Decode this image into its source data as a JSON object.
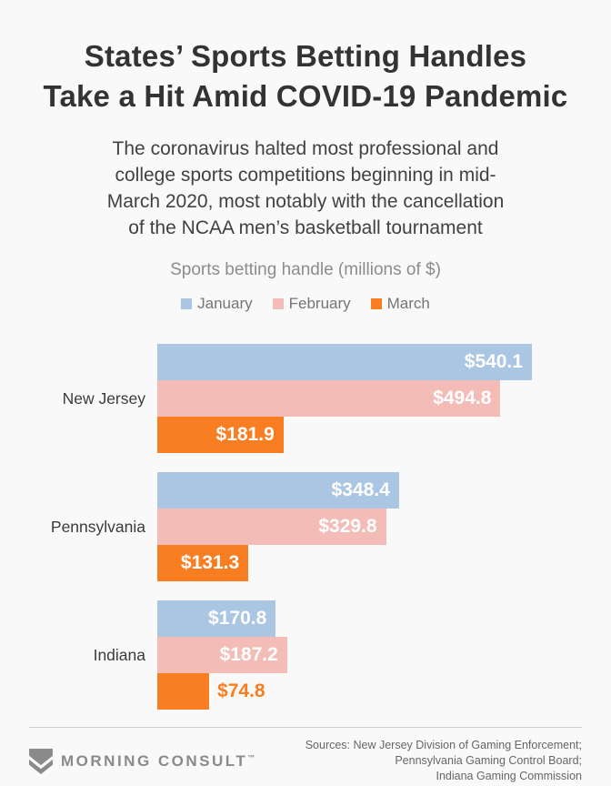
{
  "header": {
    "title_line1": "States’ Sports Betting Handles",
    "title_line2": "Take a Hit Amid COVID-19 Pandemic",
    "subtitle": "The coronavirus halted most professional and\ncollege sports competitions beginning in mid-\nMarch 2020, most notably with the cancellation\nof the NCAA men’s basketball tournament"
  },
  "chart_data": {
    "type": "bar",
    "orientation": "horizontal",
    "title": "Sports betting handle (millions of $)",
    "categories": [
      "New Jersey",
      "Pennsylvania",
      "Indiana"
    ],
    "series": [
      {
        "name": "January",
        "color": "#abc6e2",
        "values": [
          540.1,
          348.4,
          170.8
        ]
      },
      {
        "name": "February",
        "color": "#f3bcb7",
        "values": [
          494.8,
          329.8,
          187.2
        ]
      },
      {
        "name": "March",
        "color": "#f97d21",
        "values": [
          181.9,
          131.3,
          74.8
        ]
      }
    ],
    "value_prefix": "$",
    "xlim": [
      0,
      540.1
    ],
    "legend_position": "top",
    "grid": false,
    "value_labels": [
      "$540.1",
      "$494.8",
      "$181.9",
      "$348.4",
      "$329.8",
      "$131.3",
      "$170.8",
      "$187.2",
      "$74.8"
    ]
  },
  "footer": {
    "logo_text": "MORNING CONSULT",
    "trademark": "™",
    "sources": "Sources: New Jersey Division of Gaming Enforcement;\nPennsylvania Gaming Control Board;\nIndiana Gaming Commission"
  },
  "colors": {
    "background": "#f9f9f9",
    "title_text": "#333333",
    "subtitle_text": "#414141",
    "chart_title_text": "#8c8c8c",
    "legend_text": "#757575",
    "category_label_text": "#3b3b3b",
    "value_label_inside": "#ffffff",
    "divider": "#cccccc",
    "logo": "#8a8a8a",
    "sources_text": "#666666"
  }
}
